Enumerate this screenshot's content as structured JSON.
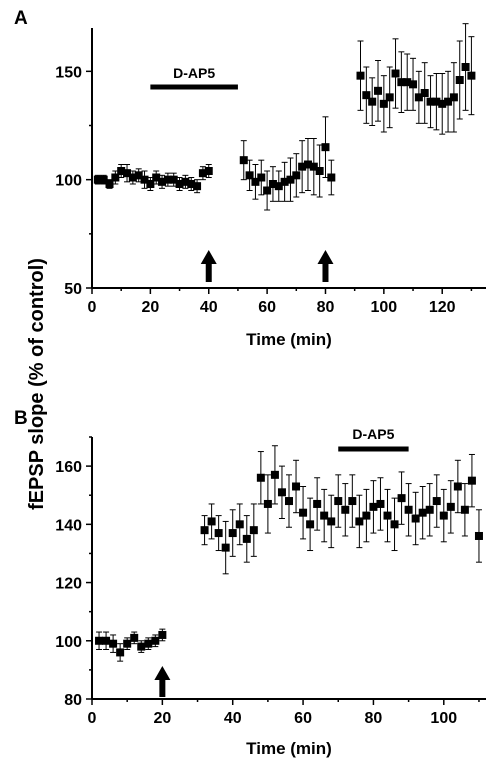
{
  "shared_ylabel": "fEPSP slope (% of control)",
  "chart_data": [
    {
      "panel": "A",
      "type": "scatter",
      "xlabel": "Time (min)",
      "xlim": [
        0,
        135
      ],
      "ylim": [
        50,
        170
      ],
      "xticks": [
        0,
        20,
        40,
        60,
        80,
        100,
        120
      ],
      "yticks": [
        50,
        100,
        150
      ],
      "drug_bar": {
        "label": "D-AP5",
        "x": [
          20,
          50
        ]
      },
      "arrows_x": [
        40,
        80
      ],
      "series": [
        {
          "x": [
            2,
            4,
            6,
            8,
            10,
            12,
            14,
            16,
            18,
            20,
            22,
            24,
            26,
            28,
            30,
            32,
            34,
            36,
            38,
            40,
            52,
            54,
            56,
            58,
            60,
            62,
            64,
            66,
            68,
            70,
            72,
            74,
            76,
            78,
            80,
            82,
            92,
            94,
            96,
            98,
            100,
            102,
            104,
            106,
            108,
            110,
            112,
            114,
            116,
            118,
            120,
            122,
            124,
            126,
            128,
            130
          ],
          "y": [
            100,
            100,
            98,
            101,
            104,
            103,
            101,
            102,
            100,
            98,
            101,
            99,
            100,
            100,
            98,
            99,
            98,
            97,
            103,
            104,
            109,
            102,
            99,
            101,
            95,
            98,
            97,
            99,
            100,
            102,
            106,
            107,
            106,
            104,
            115,
            101,
            148,
            139,
            136,
            141,
            135,
            138,
            149,
            145,
            145,
            144,
            138,
            140,
            136,
            136,
            135,
            136,
            138,
            146,
            152,
            148
          ],
          "err": [
            2,
            2,
            2,
            3,
            3,
            4,
            3,
            3,
            4,
            3,
            3,
            3,
            3,
            3,
            3,
            3,
            3,
            3,
            3,
            3,
            9,
            7,
            8,
            8,
            9,
            8,
            7,
            9,
            10,
            10,
            12,
            12,
            13,
            12,
            14,
            8,
            16,
            13,
            11,
            14,
            13,
            14,
            16,
            14,
            13,
            12,
            12,
            14,
            12,
            13,
            14,
            14,
            16,
            18,
            20,
            18
          ]
        }
      ]
    },
    {
      "panel": "B",
      "type": "scatter",
      "xlabel": "Time (min)",
      "xlim": [
        0,
        112
      ],
      "ylim": [
        80,
        170
      ],
      "xticks": [
        0,
        20,
        40,
        60,
        80,
        100
      ],
      "yticks": [
        80,
        100,
        120,
        140,
        160
      ],
      "drug_bar": {
        "label": "D-AP5",
        "x": [
          70,
          90
        ]
      },
      "arrows_x": [
        20
      ],
      "series": [
        {
          "x": [
            2,
            4,
            6,
            8,
            10,
            12,
            14,
            16,
            18,
            20,
            32,
            34,
            36,
            38,
            40,
            42,
            44,
            46,
            48,
            50,
            52,
            54,
            56,
            58,
            60,
            62,
            64,
            66,
            68,
            70,
            72,
            74,
            76,
            78,
            80,
            82,
            84,
            86,
            88,
            90,
            92,
            94,
            96,
            98,
            100,
            102,
            104,
            106,
            108,
            110
          ],
          "y": [
            100,
            100,
            99,
            96,
            99,
            101,
            98,
            99,
            100,
            102,
            138,
            141,
            137,
            132,
            137,
            140,
            135,
            138,
            156,
            147,
            157,
            151,
            148,
            153,
            144,
            140,
            147,
            143,
            141,
            148,
            145,
            148,
            141,
            143,
            146,
            147,
            143,
            140,
            149,
            145,
            142,
            144,
            145,
            148,
            143,
            146,
            153,
            145,
            155,
            136
          ],
          "err": [
            3,
            3,
            3,
            3,
            2,
            2,
            2,
            2,
            2,
            2,
            5,
            6,
            6,
            9,
            8,
            7,
            8,
            9,
            9,
            10,
            10,
            9,
            9,
            9,
            9,
            9,
            9,
            9,
            9,
            9,
            9,
            9,
            9,
            9,
            9,
            9,
            9,
            9,
            9,
            9,
            9,
            9,
            9,
            9,
            9,
            9,
            9,
            9,
            9,
            9
          ]
        }
      ]
    }
  ]
}
